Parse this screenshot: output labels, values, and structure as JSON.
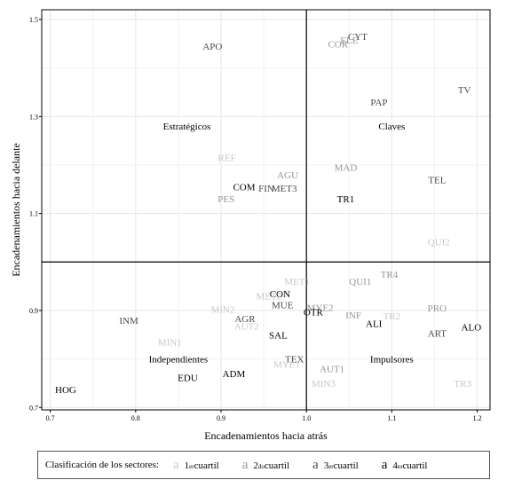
{
  "chart_data": {
    "type": "scatter",
    "xlabel": "Encadenamientos hacia atrás",
    "ylabel": "Encadenamientos hacia delante",
    "xlim": [
      0.69,
      1.215
    ],
    "ylim": [
      0.695,
      1.52
    ],
    "x_ticks": [
      "0.7",
      "0.8",
      "0.9",
      "1.0",
      "1.1",
      "1.2"
    ],
    "x_tick_values": [
      0.7,
      0.8,
      0.9,
      1.0,
      1.1,
      1.2
    ],
    "y_ticks": [
      "0.7",
      "0.9",
      "1.1",
      "1.3",
      "1.5"
    ],
    "y_tick_values": [
      0.7,
      0.9,
      1.1,
      1.3,
      1.5
    ],
    "reference_lines": {
      "x": 1.0,
      "y": 1.0
    },
    "grid": true,
    "quadrant_labels": [
      {
        "text": "Estratégicos",
        "x": 0.86,
        "y": 1.28
      },
      {
        "text": "Claves",
        "x": 1.1,
        "y": 1.28
      },
      {
        "text": "Independientes",
        "x": 0.85,
        "y": 0.8
      },
      {
        "text": "Impulsores",
        "x": 1.1,
        "y": 0.8
      }
    ],
    "points": [
      {
        "label": "APO",
        "x": 0.89,
        "y": 1.445,
        "q": 3
      },
      {
        "label": "CYT",
        "x": 1.06,
        "y": 1.465,
        "q": 3
      },
      {
        "label": "ELE",
        "x": 1.05,
        "y": 1.458,
        "q": 2
      },
      {
        "label": "COR",
        "x": 1.037,
        "y": 1.45,
        "q": 2
      },
      {
        "label": "PAP",
        "x": 1.085,
        "y": 1.33,
        "q": 3
      },
      {
        "label": "TV",
        "x": 1.185,
        "y": 1.355,
        "q": 3
      },
      {
        "label": "REF",
        "x": 0.907,
        "y": 1.215,
        "q": 1
      },
      {
        "label": "MAD",
        "x": 1.046,
        "y": 1.195,
        "q": 2
      },
      {
        "label": "AGU",
        "x": 0.978,
        "y": 1.18,
        "q": 2
      },
      {
        "label": "TEL",
        "x": 1.153,
        "y": 1.17,
        "q": 3
      },
      {
        "label": "COM",
        "x": 0.927,
        "y": 1.155,
        "q": 4
      },
      {
        "label": "FIN",
        "x": 0.953,
        "y": 1.152,
        "q": 3
      },
      {
        "label": "MET3",
        "x": 0.974,
        "y": 1.152,
        "q": 3
      },
      {
        "label": "PES",
        "x": 0.906,
        "y": 1.13,
        "q": 2
      },
      {
        "label": "TR1",
        "x": 1.046,
        "y": 1.13,
        "q": 4
      },
      {
        "label": "QUI2",
        "x": 1.155,
        "y": 1.042,
        "q": 1
      },
      {
        "label": "TR4",
        "x": 1.097,
        "y": 0.975,
        "q": 2
      },
      {
        "label": "MET1",
        "x": 0.989,
        "y": 0.96,
        "q": 1
      },
      {
        "label": "QUI1",
        "x": 1.063,
        "y": 0.96,
        "q": 2
      },
      {
        "label": "CON",
        "x": 0.969,
        "y": 0.935,
        "q": 4
      },
      {
        "label": "MET2",
        "x": 0.956,
        "y": 0.93,
        "q": 1
      },
      {
        "label": "MUE",
        "x": 0.972,
        "y": 0.912,
        "q": 3
      },
      {
        "label": "MIN2",
        "x": 0.902,
        "y": 0.903,
        "q": 1
      },
      {
        "label": "PRO",
        "x": 1.153,
        "y": 0.905,
        "q": 2
      },
      {
        "label": "MYE2",
        "x": 1.016,
        "y": 0.906,
        "q": 2
      },
      {
        "label": "OTR",
        "x": 1.008,
        "y": 0.897,
        "q": 4
      },
      {
        "label": "INF",
        "x": 1.055,
        "y": 0.891,
        "q": 2
      },
      {
        "label": "TR2",
        "x": 1.1,
        "y": 0.889,
        "q": 1
      },
      {
        "label": "AGR",
        "x": 0.928,
        "y": 0.883,
        "q": 3
      },
      {
        "label": "INM",
        "x": 0.792,
        "y": 0.88,
        "q": 3
      },
      {
        "label": "ALI",
        "x": 1.079,
        "y": 0.873,
        "q": 4
      },
      {
        "label": "AUT2",
        "x": 0.93,
        "y": 0.868,
        "q": 1
      },
      {
        "label": "ALO",
        "x": 1.193,
        "y": 0.866,
        "q": 4
      },
      {
        "label": "ART",
        "x": 1.153,
        "y": 0.853,
        "q": 3
      },
      {
        "label": "SAL",
        "x": 0.967,
        "y": 0.85,
        "q": 4
      },
      {
        "label": "MIN1",
        "x": 0.84,
        "y": 0.835,
        "q": 1
      },
      {
        "label": "TEX",
        "x": 0.986,
        "y": 0.8,
        "q": 3
      },
      {
        "label": "MYE1",
        "x": 0.977,
        "y": 0.789,
        "q": 1
      },
      {
        "label": "AUT1",
        "x": 1.03,
        "y": 0.78,
        "q": 2
      },
      {
        "label": "ADM",
        "x": 0.915,
        "y": 0.77,
        "q": 4
      },
      {
        "label": "EDU",
        "x": 0.861,
        "y": 0.762,
        "q": 4
      },
      {
        "label": "MIN3",
        "x": 1.02,
        "y": 0.75,
        "q": 1
      },
      {
        "label": "TR3",
        "x": 1.183,
        "y": 0.75,
        "q": 1
      },
      {
        "label": "HOG",
        "x": 0.718,
        "y": 0.737,
        "q": 4
      }
    ],
    "quartile_colors": {
      "1": "#c7c7c7",
      "2": "#959595",
      "3": "#4a4a4a",
      "4": "#000000"
    }
  },
  "legend": {
    "title": "Clasificación de los sectores:",
    "glyph": "a",
    "entries": [
      {
        "num": "1",
        "sup": "er",
        "word": " cuartil",
        "color": "#c7c7c7"
      },
      {
        "num": "2",
        "sup": "do",
        "word": " cuartil",
        "color": "#959595"
      },
      {
        "num": "3",
        "sup": "er",
        "word": " cuartil",
        "color": "#4a4a4a"
      },
      {
        "num": "4",
        "sup": "to",
        "word": " cuartil",
        "color": "#000000"
      }
    ]
  }
}
